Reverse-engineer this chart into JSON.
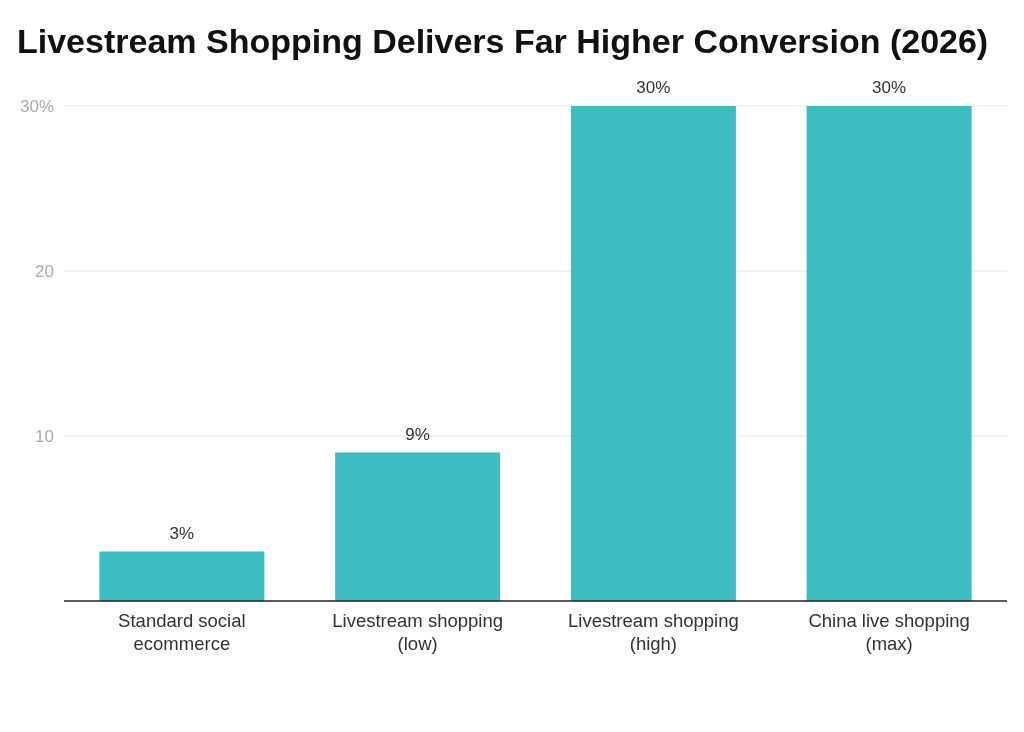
{
  "chart_data": {
    "type": "bar",
    "title": "Livestream Shopping Delivers Far Higher Conversion (2026)",
    "categories": [
      "Standard social ecommerce",
      "Livestream shopping (low)",
      "Livestream shopping (high)",
      "China live shopping (max)"
    ],
    "values": [
      3,
      9,
      30,
      30
    ],
    "value_labels": [
      "3%",
      "9%",
      "30%",
      "30%"
    ],
    "color": "#3bbdc2",
    "ylim": [
      0,
      30
    ],
    "yticks": [
      10,
      20,
      {
        "value": 30,
        "label": "30%"
      }
    ],
    "grid": "y"
  }
}
